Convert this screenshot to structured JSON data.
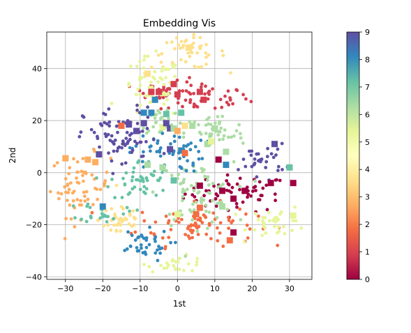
{
  "chart_data": {
    "type": "scatter",
    "title": "Embedding Vis",
    "xlabel": "1st",
    "ylabel": "2nd",
    "xlim": [
      -35,
      36
    ],
    "ylim": [
      -41,
      54
    ],
    "xticks": [
      "−30",
      "−20",
      "−10",
      "0",
      "10",
      "20",
      "30"
    ],
    "xtick_values": [
      -30,
      -20,
      -10,
      0,
      10,
      20,
      30
    ],
    "yticks": [
      "−40",
      "−20",
      "0",
      "20",
      "40"
    ],
    "ytick_values": [
      -40,
      -20,
      0,
      20,
      40
    ],
    "grid": true,
    "colorbar": {
      "colormap": "Spectral",
      "range": [
        0,
        9
      ],
      "ticks": [
        "0",
        "1",
        "2",
        "3",
        "4",
        "5",
        "6",
        "7",
        "8",
        "9"
      ]
    },
    "markers": {
      "small": "circle",
      "large": "square"
    },
    "clusters": [
      {
        "label": 0,
        "center": [
          16,
          -8
        ],
        "spread": [
          7,
          3.5
        ]
      },
      {
        "label": 1,
        "center": [
          7,
          29
        ],
        "spread": [
          6,
          3
        ]
      },
      {
        "label": 1,
        "center": [
          -6,
          31
        ],
        "spread": [
          3,
          2
        ]
      },
      {
        "label": 2,
        "center": [
          5,
          -20
        ],
        "spread": [
          8,
          4
        ]
      },
      {
        "label": 3,
        "center": [
          -26,
          -5
        ],
        "spread": [
          4,
          6
        ]
      },
      {
        "label": 4,
        "center": [
          3,
          46
        ],
        "spread": [
          5,
          3
        ]
      },
      {
        "label": 4,
        "center": [
          -15,
          -18
        ],
        "spread": [
          3,
          4
        ]
      },
      {
        "label": 5,
        "center": [
          -7,
          32
        ],
        "spread": [
          4,
          6
        ]
      },
      {
        "label": 5,
        "center": [
          27,
          -19
        ],
        "spread": [
          4,
          3
        ]
      },
      {
        "label": 5,
        "center": [
          0,
          -35
        ],
        "spread": [
          4,
          1.5
        ]
      },
      {
        "label": 6,
        "center": [
          5,
          -8
        ],
        "spread": [
          5,
          6
        ]
      },
      {
        "label": 6,
        "center": [
          10,
          15
        ],
        "spread": [
          4,
          4
        ]
      },
      {
        "label": 6,
        "center": [
          -4,
          20
        ],
        "spread": [
          3,
          3
        ]
      },
      {
        "label": 7,
        "center": [
          -10,
          -3
        ],
        "spread": [
          4,
          4
        ]
      },
      {
        "label": 7,
        "center": [
          -20,
          -15
        ],
        "spread": [
          3,
          2
        ]
      },
      {
        "label": 8,
        "center": [
          -10,
          -28
        ],
        "spread": [
          4,
          3
        ]
      },
      {
        "label": 8,
        "center": [
          -3,
          8
        ],
        "spread": [
          5,
          4
        ]
      },
      {
        "label": 9,
        "center": [
          -15,
          13
        ],
        "spread": [
          5,
          6
        ]
      },
      {
        "label": 9,
        "center": [
          23,
          5
        ],
        "spread": [
          3,
          3
        ]
      }
    ],
    "highlighted": [
      {
        "x": -30,
        "y": 5.5,
        "label": 3
      },
      {
        "x": -24,
        "y": 5,
        "label": 3
      },
      {
        "x": -22,
        "y": 4,
        "label": 3
      },
      {
        "x": -21,
        "y": 7,
        "label": 9
      },
      {
        "x": -20,
        "y": -13,
        "label": 8
      },
      {
        "x": -15,
        "y": 18,
        "label": 2
      },
      {
        "x": -13,
        "y": 18.5,
        "label": 9
      },
      {
        "x": -11,
        "y": 16,
        "label": 9
      },
      {
        "x": -9,
        "y": 19,
        "label": 9
      },
      {
        "x": -9,
        "y": 23,
        "label": 8
      },
      {
        "x": -8,
        "y": 38,
        "label": 4
      },
      {
        "x": -7,
        "y": 31,
        "label": 1
      },
      {
        "x": -7,
        "y": 23,
        "label": 8
      },
      {
        "x": -6,
        "y": 28,
        "label": 8
      },
      {
        "x": -5,
        "y": 31,
        "label": 1
      },
      {
        "x": -4,
        "y": 17.5,
        "label": 5
      },
      {
        "x": -3,
        "y": 22.5,
        "label": 7
      },
      {
        "x": -3,
        "y": 19,
        "label": 9
      },
      {
        "x": -2,
        "y": 9,
        "label": 9
      },
      {
        "x": -2,
        "y": 17,
        "label": 9
      },
      {
        "x": -1,
        "y": 17,
        "label": 6
      },
      {
        "x": -1,
        "y": 34,
        "label": 1
      },
      {
        "x": 0,
        "y": 30,
        "label": 1
      },
      {
        "x": 1,
        "y": 23,
        "label": 7
      },
      {
        "x": 1,
        "y": 8.5,
        "label": 8
      },
      {
        "x": 2,
        "y": 18,
        "label": 4
      },
      {
        "x": 3,
        "y": 48,
        "label": 4
      },
      {
        "x": 4,
        "y": 18,
        "label": 6
      },
      {
        "x": 6,
        "y": 31,
        "label": 1
      },
      {
        "x": 7,
        "y": 28,
        "label": 1
      },
      {
        "x": 8,
        "y": 11,
        "label": 6
      },
      {
        "x": 9,
        "y": 12,
        "label": 5
      },
      {
        "x": 10,
        "y": 17,
        "label": 6
      },
      {
        "x": 11,
        "y": 5,
        "label": 0
      },
      {
        "x": 13,
        "y": 8,
        "label": 6
      },
      {
        "x": 13,
        "y": 3,
        "label": 8
      },
      {
        "x": 12,
        "y": -13,
        "label": 6
      },
      {
        "x": 12,
        "y": -7,
        "label": 0
      },
      {
        "x": 15,
        "y": -10,
        "label": 0
      },
      {
        "x": 18,
        "y": -7,
        "label": 0
      },
      {
        "x": 25,
        "y": -4,
        "label": 0
      },
      {
        "x": 26,
        "y": 11,
        "label": 9
      },
      {
        "x": 30,
        "y": 2,
        "label": 7
      },
      {
        "x": 31,
        "y": -4,
        "label": 0
      },
      {
        "x": 31,
        "y": -16.5,
        "label": 5
      },
      {
        "x": 6,
        "y": -5,
        "label": 0
      },
      {
        "x": 6,
        "y": -13.5,
        "label": 2
      },
      {
        "x": 5,
        "y": -16,
        "label": 2
      },
      {
        "x": 14,
        "y": -26,
        "label": 2
      },
      {
        "x": 15,
        "y": -23,
        "label": 0
      },
      {
        "x": 2,
        "y": 7.5,
        "label": 2
      },
      {
        "x": 0,
        "y": 16,
        "label": 3
      },
      {
        "x": -1,
        "y": -3,
        "label": 7
      },
      {
        "x": 0,
        "y": -16,
        "label": 5
      },
      {
        "x": -4,
        "y": 2,
        "label": 6
      },
      {
        "x": -8,
        "y": 3,
        "label": 6
      }
    ]
  }
}
